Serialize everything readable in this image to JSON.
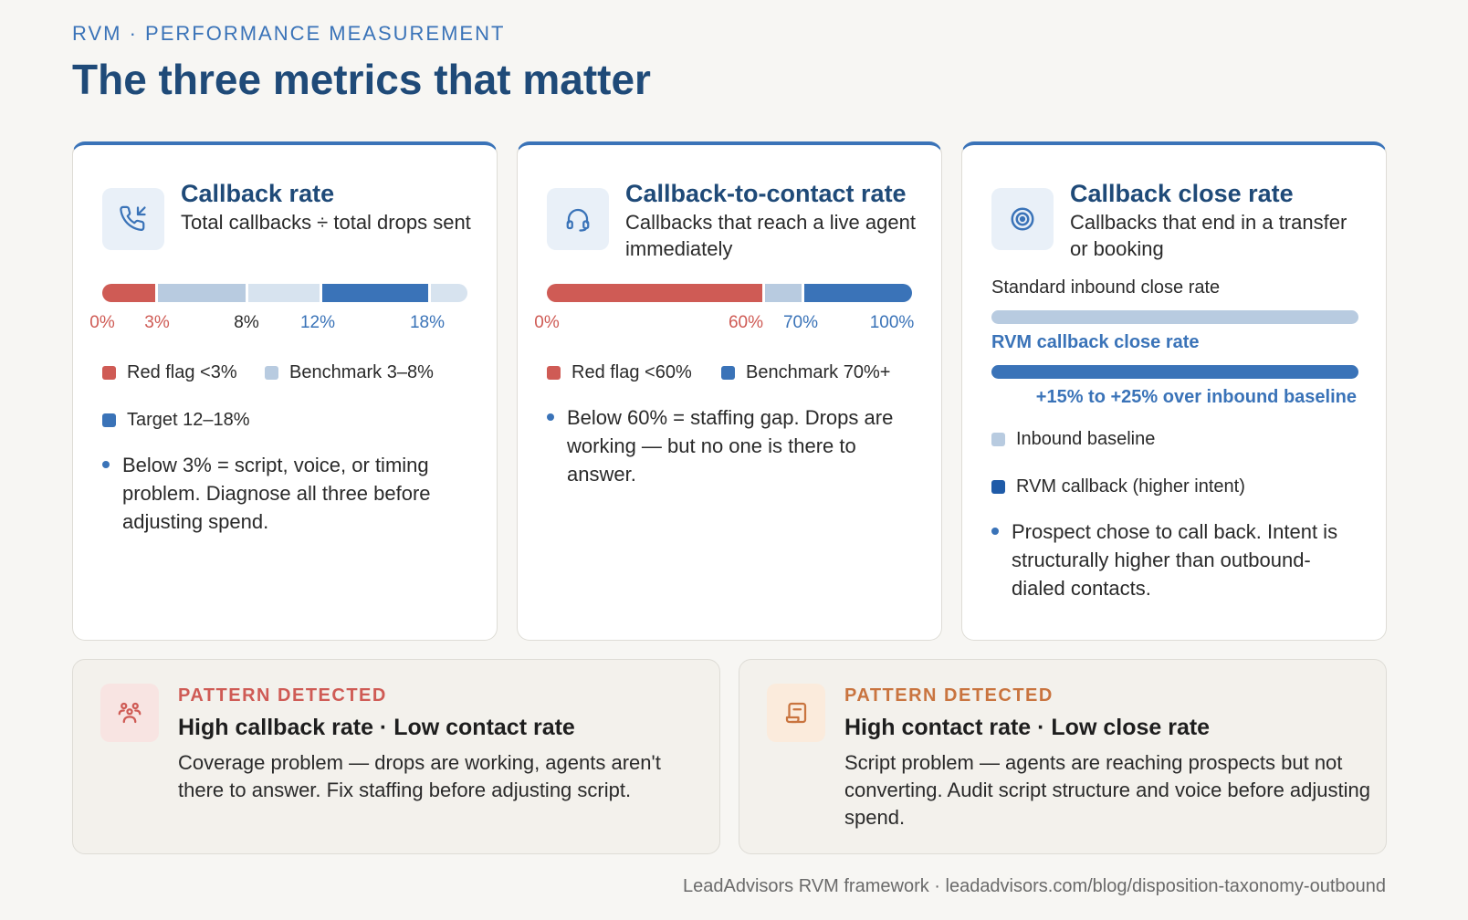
{
  "header": {
    "eyebrow": "RVM · PERFORMANCE MEASUREMENT",
    "title": "The three metrics that matter"
  },
  "colors": {
    "accent": "#3a73b8",
    "title": "#1f4a78",
    "red": "#cf5b55",
    "light_blue": "#b8cbe0",
    "pale_blue": "#d7e3ef",
    "orange": "#c9743f"
  },
  "cards": [
    {
      "icon": "phone-incoming-icon",
      "title": "Callback rate",
      "subtitle": "Total callbacks ÷ total drops sent",
      "ticks": [
        "0%",
        "3%",
        "8%",
        "12%",
        "18%"
      ],
      "legend": [
        "Red flag <3%",
        "Benchmark 3–8%",
        "Target 12–18%"
      ],
      "note": "Below 3% = script, voice, or timing problem. Diagnose all three before adjusting spend."
    },
    {
      "icon": "headset-icon",
      "title": "Callback-to-contact rate",
      "subtitle": "Callbacks that reach a live agent immediately",
      "ticks": [
        "0%",
        "60%",
        "70%",
        "100%"
      ],
      "legend": [
        "Red flag <60%",
        "Benchmark 70%+"
      ],
      "note": "Below 60% = staffing gap. Drops are working — but no one is there to answer."
    },
    {
      "icon": "target-icon",
      "title": "Callback close rate",
      "subtitle": "Callbacks that end in a transfer or booking",
      "bar1_label": "Standard inbound close rate",
      "bar2_label": "RVM callback close rate",
      "uplift": "+15% to +25% over inbound baseline",
      "legend": [
        "Inbound baseline",
        "RVM callback (higher intent)"
      ],
      "note": "Prospect chose to call back. Intent is structurally higher than outbound-dialed contacts."
    }
  ],
  "patterns": [
    {
      "icon": "people-icon",
      "eyebrow": "PATTERN DETECTED",
      "title": "High callback rate · Low contact rate",
      "body": "Coverage problem — drops are working, agents aren't there to answer. Fix staffing before adjusting script."
    },
    {
      "icon": "script-icon",
      "eyebrow": "PATTERN DETECTED",
      "title": "High contact rate · Low close rate",
      "body": "Script problem — agents are reaching prospects but not converting. Audit script structure and voice before adjusting spend."
    }
  ],
  "footer": "LeadAdvisors RVM framework · leadadvisors.com/blog/disposition-taxonomy-outbound"
}
